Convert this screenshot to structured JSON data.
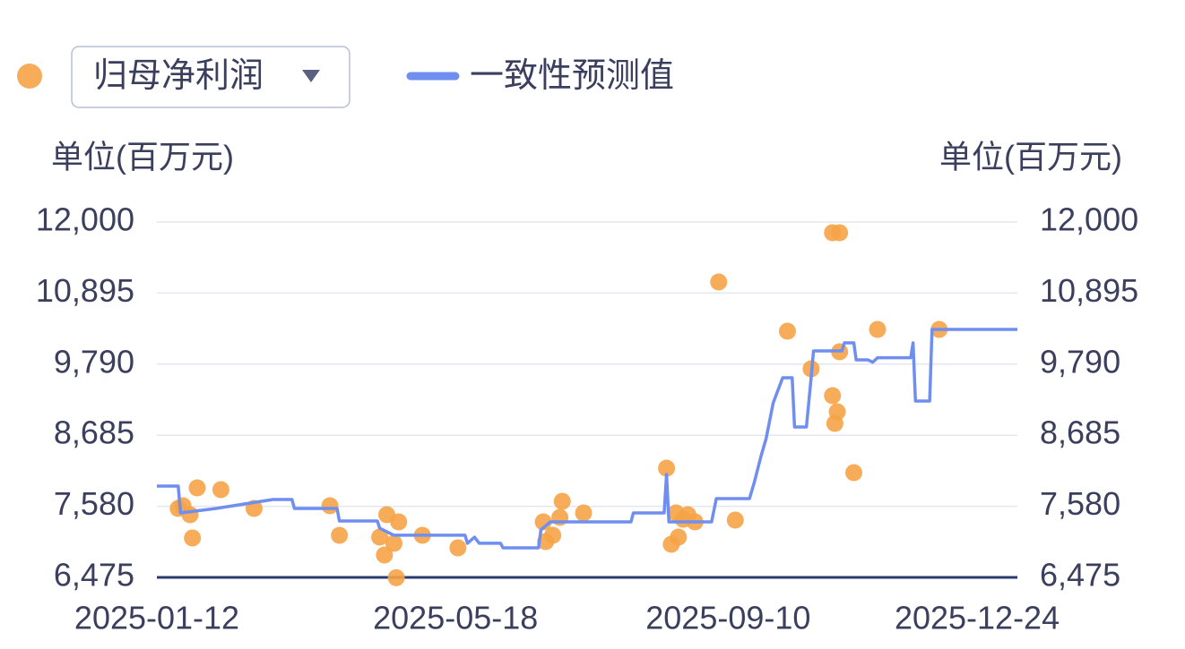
{
  "chart_data": {
    "type": "line-scatter",
    "dropdown": "归母净利润",
    "y_unit_label": "单位(百万元)",
    "y2_unit_label": "单位(百万元)",
    "xlim": [
      "2025-01-12",
      "2026-01-10"
    ],
    "xticks": [
      "2025-01-12",
      "2025-05-18",
      "2025-09-10",
      "2025-12-24"
    ],
    "ylim": [
      6475,
      12000
    ],
    "yticks": [
      {
        "value": 6475,
        "label": "6,475"
      },
      {
        "value": 7580,
        "label": "7,580"
      },
      {
        "value": 8685,
        "label": "8,685"
      },
      {
        "value": 9790,
        "label": "9,790"
      },
      {
        "value": 10895,
        "label": "10,895"
      },
      {
        "value": 12000,
        "label": "12,000"
      }
    ],
    "y2lim": [
      6475,
      12000
    ],
    "y2ticks": [
      {
        "value": 6475,
        "label": "6,475"
      },
      {
        "value": 7580,
        "label": "7,580"
      },
      {
        "value": 8685,
        "label": "8,685"
      },
      {
        "value": 9790,
        "label": "9,790"
      },
      {
        "value": 10895,
        "label": "10,895"
      },
      {
        "value": 12000,
        "label": "12,000"
      }
    ],
    "grid": true,
    "series": [
      {
        "name": "",
        "kind": "scatter",
        "color": "#f5a346",
        "x": [
          "2025-01-21",
          "2025-01-23",
          "2025-01-26",
          "2025-01-27",
          "2025-01-29",
          "2025-02-08",
          "2025-02-22",
          "2025-03-26",
          "2025-03-30",
          "2025-04-16",
          "2025-04-18",
          "2025-04-19",
          "2025-04-23",
          "2025-04-24",
          "2025-04-22",
          "2025-05-04",
          "2025-05-19",
          "2025-06-24",
          "2025-06-25",
          "2025-06-28",
          "2025-07-01",
          "2025-07-02",
          "2025-07-11",
          "2025-08-15",
          "2025-08-17",
          "2025-08-19",
          "2025-08-20",
          "2025-08-22",
          "2025-08-24",
          "2025-08-27",
          "2025-09-06",
          "2025-09-13",
          "2025-10-05",
          "2025-10-15",
          "2025-10-24",
          "2025-10-25",
          "2025-10-26",
          "2025-10-24",
          "2025-10-27",
          "2025-10-27",
          "2025-11-02",
          "2025-11-12",
          "2025-12-08"
        ],
        "values": [
          7547,
          7588,
          7449,
          7088,
          7867,
          7839,
          7547,
          7588,
          7129,
          7101,
          6823,
          7449,
          6470,
          7338,
          7004,
          7129,
          6934,
          7338,
          7032,
          7129,
          7407,
          7658,
          7477,
          8173,
          6990,
          7477,
          7101,
          7379,
          7449,
          7338,
          11068,
          7366,
          10302,
          9718,
          9300,
          8869,
          9050,
          11833,
          11833,
          9982,
          8103,
          10330,
          10330
        ]
      },
      {
        "name": "一致性预测值",
        "kind": "line",
        "color": "#6f8ef0",
        "x": [
          "2025-01-12",
          "2025-01-21",
          "2025-01-22",
          "2025-02-06",
          "2025-03-02",
          "2025-03-10",
          "2025-03-11",
          "2025-03-29",
          "2025-03-30",
          "2025-04-15",
          "2025-04-16",
          "2025-04-22",
          "2025-05-22",
          "2025-05-23",
          "2025-05-26",
          "2025-05-28",
          "2025-06-06",
          "2025-06-07",
          "2025-06-22",
          "2025-06-23",
          "2025-06-27",
          "2025-07-31",
          "2025-08-01",
          "2025-08-14",
          "2025-08-15",
          "2025-08-16",
          "2025-09-03",
          "2025-09-05",
          "2025-09-19",
          "2025-09-21",
          "2025-09-24",
          "2025-09-26",
          "2025-09-29",
          "2025-10-03",
          "2025-10-07",
          "2025-10-08",
          "2025-10-13",
          "2025-10-15",
          "2025-10-16",
          "2025-10-28",
          "2025-10-29",
          "2025-11-02",
          "2025-11-03",
          "2025-11-08",
          "2025-11-10",
          "2025-11-12",
          "2025-11-26",
          "2025-11-27",
          "2025-11-28",
          "2025-12-04",
          "2025-12-05",
          "2026-01-10"
        ],
        "values": [
          7895,
          7895,
          7477,
          7547,
          7686,
          7686,
          7547,
          7547,
          7352,
          7352,
          7240,
          7130,
          7130,
          7005,
          7100,
          7005,
          7005,
          6935,
          6935,
          7213,
          7338,
          7338,
          7477,
          7477,
          8075,
          7338,
          7338,
          7700,
          7700,
          7950,
          8380,
          8632,
          9189,
          9578,
          9578,
          8813,
          8813,
          9578,
          9996,
          9996,
          10121,
          10121,
          9856,
          9856,
          9820,
          9890,
          9890,
          10121,
          9217,
          9217,
          10330,
          10330
        ]
      }
    ]
  }
}
